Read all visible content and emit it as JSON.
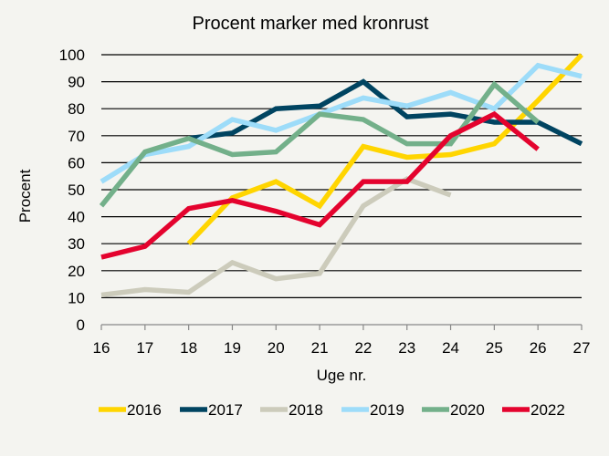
{
  "chart_data": {
    "type": "line",
    "title": "Procent marker med kronrust",
    "xlabel": "Uge nr.",
    "ylabel": "Procent",
    "x": [
      16,
      17,
      18,
      19,
      20,
      21,
      22,
      23,
      24,
      25,
      26,
      27
    ],
    "xlim": [
      16,
      27
    ],
    "ylim": [
      0,
      100
    ],
    "yticks": [
      0,
      10,
      20,
      30,
      40,
      50,
      60,
      70,
      80,
      90,
      100
    ],
    "grid": "horizontal",
    "legend_position": "bottom",
    "series": [
      {
        "name": "2016",
        "color": "#FFD500",
        "values": [
          null,
          null,
          30,
          47,
          53,
          44,
          66,
          62,
          63,
          67,
          83,
          100
        ]
      },
      {
        "name": "2017",
        "color": "#004461",
        "values": [
          null,
          null,
          69,
          71,
          80,
          81,
          90,
          77,
          78,
          75,
          75,
          67
        ]
      },
      {
        "name": "2018",
        "color": "#CCCBBB",
        "values": [
          11,
          13,
          12,
          23,
          17,
          19,
          44,
          54,
          48,
          null,
          null,
          null
        ]
      },
      {
        "name": "2019",
        "color": "#9DDCF9",
        "values": [
          53,
          63,
          66,
          76,
          72,
          78,
          84,
          81,
          86,
          80,
          96,
          92
        ]
      },
      {
        "name": "2020",
        "color": "#73B08A",
        "values": [
          44,
          64,
          69,
          63,
          64,
          78,
          76,
          67,
          67,
          89,
          75,
          null
        ]
      },
      {
        "name": "2022",
        "color": "#E4032E",
        "values": [
          25,
          29,
          43,
          46,
          42,
          37,
          53,
          53,
          70,
          78,
          65,
          null
        ]
      }
    ]
  }
}
